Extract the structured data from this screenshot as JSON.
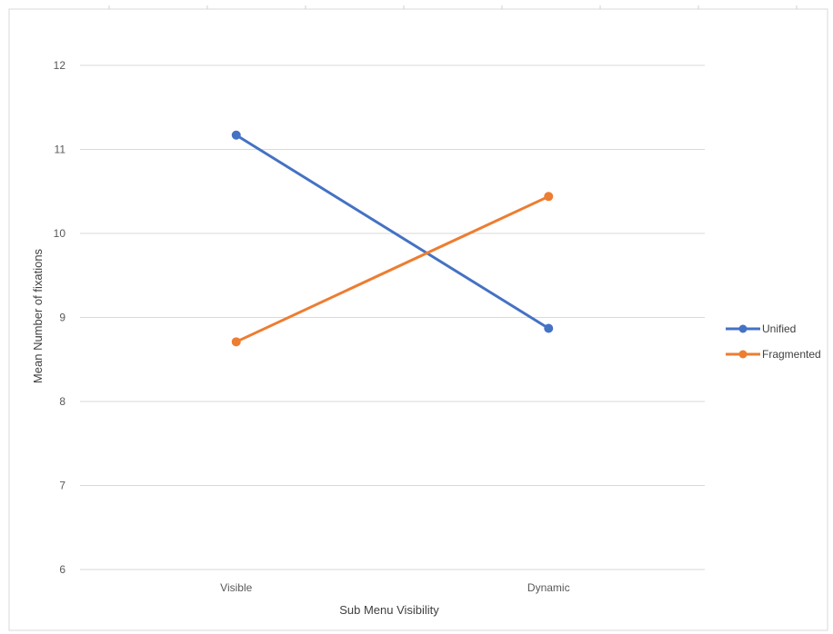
{
  "chart_data": {
    "type": "line",
    "categories": [
      "Visible",
      "Dynamic"
    ],
    "series": [
      {
        "name": "Unified",
        "values": [
          11.17,
          8.87
        ],
        "color": "#4472C4"
      },
      {
        "name": "Fragmented",
        "values": [
          8.71,
          10.44
        ],
        "color": "#ED7D31"
      }
    ],
    "xlabel": "Sub Menu Visibility",
    "ylabel": "Mean Number of fixations",
    "ylim": [
      6,
      12
    ],
    "yticks": [
      6,
      7,
      8,
      9,
      10,
      11,
      12
    ],
    "grid": true,
    "legend_position": "right"
  }
}
